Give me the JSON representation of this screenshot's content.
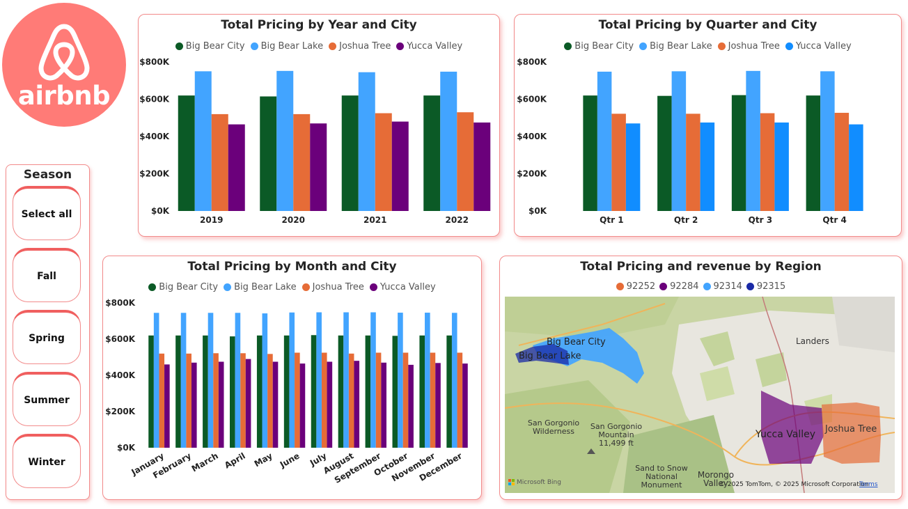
{
  "logo": {
    "text": "airbnb",
    "color": "#ff7b77"
  },
  "colors": {
    "big_bear_city": "#0b5a26",
    "big_bear_lake": "#42a4ff",
    "joshua_tree": "#e66c37",
    "yucca_valley": "#6b007b",
    "yucca_valley_q": "#118dff",
    "region_92252": "#e66c37",
    "region_92284": "#6b007b",
    "region_92314": "#42a4ff",
    "region_92315": "#1a2aa6"
  },
  "season": {
    "title": "Season",
    "items": [
      "Select all",
      "Fall",
      "Spring",
      "Summer",
      "Winter"
    ]
  },
  "charts": {
    "year": {
      "title": "Total Pricing by Year and City",
      "legend": [
        "Big Bear City",
        "Big Bear Lake",
        "Joshua Tree",
        "Yucca Valley"
      ]
    },
    "quarter": {
      "title": "Total Pricing by Quarter and City",
      "legend": [
        "Big Bear City",
        "Big Bear Lake",
        "Joshua Tree",
        "Yucca Valley"
      ]
    },
    "month": {
      "title": "Total Pricing by Month and City",
      "legend": [
        "Big Bear City",
        "Big Bear Lake",
        "Joshua Tree",
        "Yucca Valley"
      ]
    },
    "region": {
      "title": "Total Pricing and revenue by Region",
      "legend": [
        "92252",
        "92284",
        "92314",
        "92315"
      ]
    }
  },
  "chart_data": [
    {
      "type": "bar",
      "title": "Total Pricing by Year and City",
      "categories": [
        "2019",
        "2020",
        "2021",
        "2022"
      ],
      "yticks": [
        "$0K",
        "$200K",
        "$400K",
        "$600K",
        "$800K"
      ],
      "ylim": [
        0,
        800000
      ],
      "series": [
        {
          "name": "Big Bear City",
          "values": [
            620000,
            615000,
            620000,
            620000
          ]
        },
        {
          "name": "Big Bear Lake",
          "values": [
            750000,
            752000,
            745000,
            748000
          ]
        },
        {
          "name": "Joshua Tree",
          "values": [
            520000,
            520000,
            525000,
            530000
          ]
        },
        {
          "name": "Yucca Valley",
          "values": [
            465000,
            470000,
            480000,
            475000
          ]
        }
      ]
    },
    {
      "type": "bar",
      "title": "Total Pricing by Quarter and City",
      "categories": [
        "Qtr 1",
        "Qtr 2",
        "Qtr 3",
        "Qtr 4"
      ],
      "yticks": [
        "$0K",
        "$200K",
        "$400K",
        "$600K",
        "$800K"
      ],
      "ylim": [
        0,
        800000
      ],
      "series": [
        {
          "name": "Big Bear City",
          "values": [
            620000,
            618000,
            622000,
            620000
          ]
        },
        {
          "name": "Big Bear Lake",
          "values": [
            748000,
            750000,
            752000,
            750000
          ]
        },
        {
          "name": "Joshua Tree",
          "values": [
            522000,
            522000,
            525000,
            527000
          ]
        },
        {
          "name": "Yucca Valley",
          "values": [
            470000,
            475000,
            475000,
            465000
          ]
        }
      ]
    },
    {
      "type": "bar",
      "title": "Total Pricing by Month and City",
      "categories": [
        "January",
        "February",
        "March",
        "April",
        "May",
        "June",
        "July",
        "August",
        "September",
        "October",
        "November",
        "December"
      ],
      "yticks": [
        "$0K",
        "$200K",
        "$400K",
        "$600K",
        "$800K"
      ],
      "ylim": [
        0,
        800000
      ],
      "series": [
        {
          "name": "Big Bear City",
          "values": [
            620000,
            620000,
            620000,
            615000,
            620000,
            620000,
            622000,
            620000,
            620000,
            618000,
            620000,
            620000
          ]
        },
        {
          "name": "Big Bear Lake",
          "values": [
            745000,
            745000,
            745000,
            745000,
            742000,
            747000,
            748000,
            748000,
            748000,
            746000,
            746000,
            745000
          ]
        },
        {
          "name": "Joshua Tree",
          "values": [
            520000,
            520000,
            522000,
            522000,
            518000,
            525000,
            525000,
            520000,
            525000,
            525000,
            525000,
            525000
          ]
        },
        {
          "name": "Yucca Valley",
          "values": [
            460000,
            470000,
            475000,
            490000,
            475000,
            465000,
            475000,
            480000,
            470000,
            458000,
            468000,
            465000
          ]
        }
      ]
    }
  ],
  "map": {
    "labels": {
      "big_bear_city": "Big Bear City",
      "big_bear_lake": "Big Bear Lake",
      "landers": "Landers",
      "yucca_valley": "Yucca Valley",
      "joshua_tree": "Joshua Tree",
      "san_gorgonio_wilderness": "San Gorgonio Wilderness",
      "san_gorgonio_mountain": "San Gorgonio Mountain 11,499 ft",
      "sand_to_snow": "Sand to Snow National Monument",
      "morongo_valley": "Morongo Valley"
    },
    "attribution": "Microsoft Bing",
    "copyright": "© 2025 TomTom, © 2025 Microsoft Corporation",
    "terms": "Terms"
  }
}
